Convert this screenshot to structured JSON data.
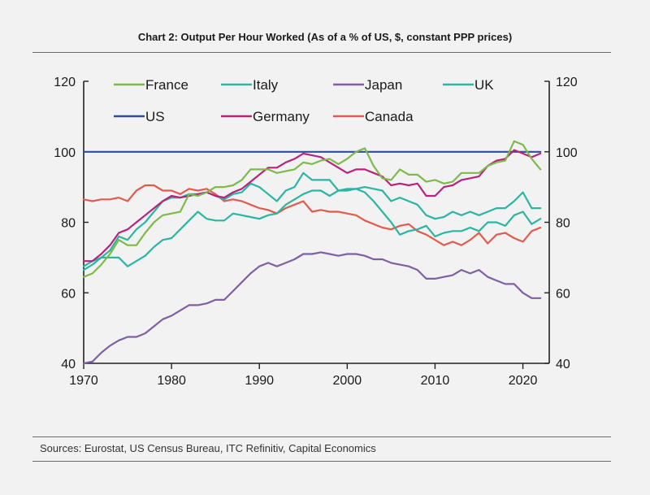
{
  "title": "Chart 2: Output Per Hour Worked (As of a % of US, $, constant PPP prices)",
  "source": "Sources: Eurostat, US Census Bureau, ITC Refinitiv, Capital Economics",
  "chart_data": {
    "type": "line",
    "title": "Chart 2: Output Per Hour Worked (As of a % of US, $, constant PPP prices)",
    "xlabel": "",
    "ylabel": "",
    "xlim": [
      1970,
      2023
    ],
    "ylim": [
      40,
      120
    ],
    "x_ticks": [
      "1970",
      "1980",
      "1990",
      "2000",
      "2010",
      "2020"
    ],
    "y_ticks": [
      "40",
      "60",
      "80",
      "100",
      "120"
    ],
    "grid": false,
    "legend_position": "top",
    "x": [
      1970,
      1971,
      1972,
      1973,
      1974,
      1975,
      1976,
      1977,
      1978,
      1979,
      1980,
      1981,
      1982,
      1983,
      1984,
      1985,
      1986,
      1987,
      1988,
      1989,
      1990,
      1991,
      1992,
      1993,
      1994,
      1995,
      1996,
      1997,
      1998,
      1999,
      2000,
      2001,
      2002,
      2003,
      2004,
      2005,
      2006,
      2007,
      2008,
      2009,
      2010,
      2011,
      2012,
      2013,
      2014,
      2015,
      2016,
      2017,
      2018,
      2019,
      2020,
      2021,
      2022
    ],
    "series": [
      {
        "name": "France",
        "color": "#7dba4a",
        "values": [
          64.5,
          65.5,
          68,
          71,
          75,
          73.5,
          73.5,
          77,
          80,
          82,
          82.5,
          83,
          88,
          87.5,
          88.5,
          90,
          90,
          90.5,
          92,
          95,
          95,
          95,
          94,
          94.5,
          95,
          97,
          96.5,
          97.5,
          98,
          96.5,
          98,
          100,
          101,
          96,
          92.5,
          92,
          95,
          93.5,
          93.5,
          91.5,
          92,
          91,
          91.5,
          94,
          94,
          94,
          96,
          97,
          97.5,
          103,
          102,
          98,
          95
        ]
      },
      {
        "name": "Italy",
        "color": "#2bb5a3",
        "values": [
          66.5,
          68,
          70,
          72,
          76,
          75,
          78,
          80,
          83,
          86,
          87,
          87,
          88,
          88,
          88.5,
          87.5,
          86.5,
          88,
          88.5,
          91,
          90,
          88,
          86,
          89,
          90,
          94,
          92,
          92,
          92,
          89,
          89,
          89.5,
          90,
          89.5,
          89,
          86,
          87,
          86,
          85,
          82,
          81,
          81.5,
          83,
          82,
          83,
          82,
          83,
          84,
          84,
          86,
          88.5,
          84,
          84
        ]
      },
      {
        "name": "Japan",
        "color": "#7f5fa5",
        "values": [
          40,
          40.5,
          43,
          45,
          46.5,
          47.5,
          47.5,
          48.5,
          50.5,
          52.5,
          53.5,
          55,
          56.5,
          56.5,
          57,
          58,
          58,
          60.5,
          63,
          65.5,
          67.5,
          68.5,
          67.5,
          68.5,
          69.5,
          71,
          71,
          71.5,
          71,
          70.5,
          71,
          71,
          70.5,
          69.5,
          69.5,
          68.5,
          68,
          67.5,
          66.5,
          64,
          64,
          64.5,
          65,
          66.5,
          65.5,
          66.5,
          64.5,
          63.5,
          62.5,
          62.5,
          60,
          58.5,
          58.5
        ]
      },
      {
        "name": "UK",
        "color": "#2bb5a3",
        "values": [
          67.5,
          69,
          70,
          70,
          70,
          67.5,
          69,
          70.5,
          73,
          75,
          75.5,
          78,
          80.5,
          83,
          81,
          80.5,
          80.5,
          82.5,
          82,
          81.5,
          81,
          82,
          82.5,
          85,
          86.5,
          88,
          89,
          89,
          87.5,
          89,
          89.5,
          89.5,
          88.5,
          86,
          83,
          80,
          76.5,
          77.5,
          78,
          79,
          76,
          77,
          77.5,
          77.5,
          78.5,
          77.5,
          80,
          80,
          79,
          82,
          83,
          79.5,
          81
        ]
      },
      {
        "name": "US",
        "color": "#2a4ea0",
        "values": [
          100,
          100,
          100,
          100,
          100,
          100,
          100,
          100,
          100,
          100,
          100,
          100,
          100,
          100,
          100,
          100,
          100,
          100,
          100,
          100,
          100,
          100,
          100,
          100,
          100,
          100,
          100,
          100,
          100,
          100,
          100,
          100,
          100,
          100,
          100,
          100,
          100,
          100,
          100,
          100,
          100,
          100,
          100,
          100,
          100,
          100,
          100,
          100,
          100,
          100,
          100,
          100,
          100
        ]
      },
      {
        "name": "Germany",
        "color": "#b8237d",
        "values": [
          69,
          69,
          71,
          73.5,
          77,
          78,
          80,
          82,
          84,
          86,
          87.5,
          87,
          87.5,
          88,
          88.5,
          87.5,
          87,
          88.5,
          89.5,
          91.5,
          93.5,
          95.5,
          95.5,
          97,
          98,
          99.5,
          99,
          98.5,
          97,
          95.5,
          94,
          95,
          95,
          94,
          93,
          90.5,
          91,
          90.5,
          91,
          87.5,
          87.5,
          90,
          90.5,
          92,
          92.5,
          93,
          96,
          97.5,
          98,
          100.5,
          99.5,
          98.5,
          99.5
        ]
      },
      {
        "name": "Canada",
        "color": "#e05c4d",
        "values": [
          86.5,
          86,
          86.5,
          86.5,
          87,
          86,
          89,
          90.5,
          90.5,
          89,
          89,
          88,
          89.5,
          89,
          89.5,
          88,
          86,
          86.5,
          86,
          85,
          84,
          83.5,
          82.5,
          84,
          85,
          86,
          83,
          83.5,
          83,
          83,
          82.5,
          82,
          80.5,
          79.5,
          78.5,
          78,
          79,
          79.5,
          77.5,
          76.5,
          75,
          73.5,
          74.5,
          73.5,
          75,
          77,
          74,
          76.5,
          77,
          75.5,
          74.5,
          77.5,
          78.5
        ]
      }
    ]
  }
}
